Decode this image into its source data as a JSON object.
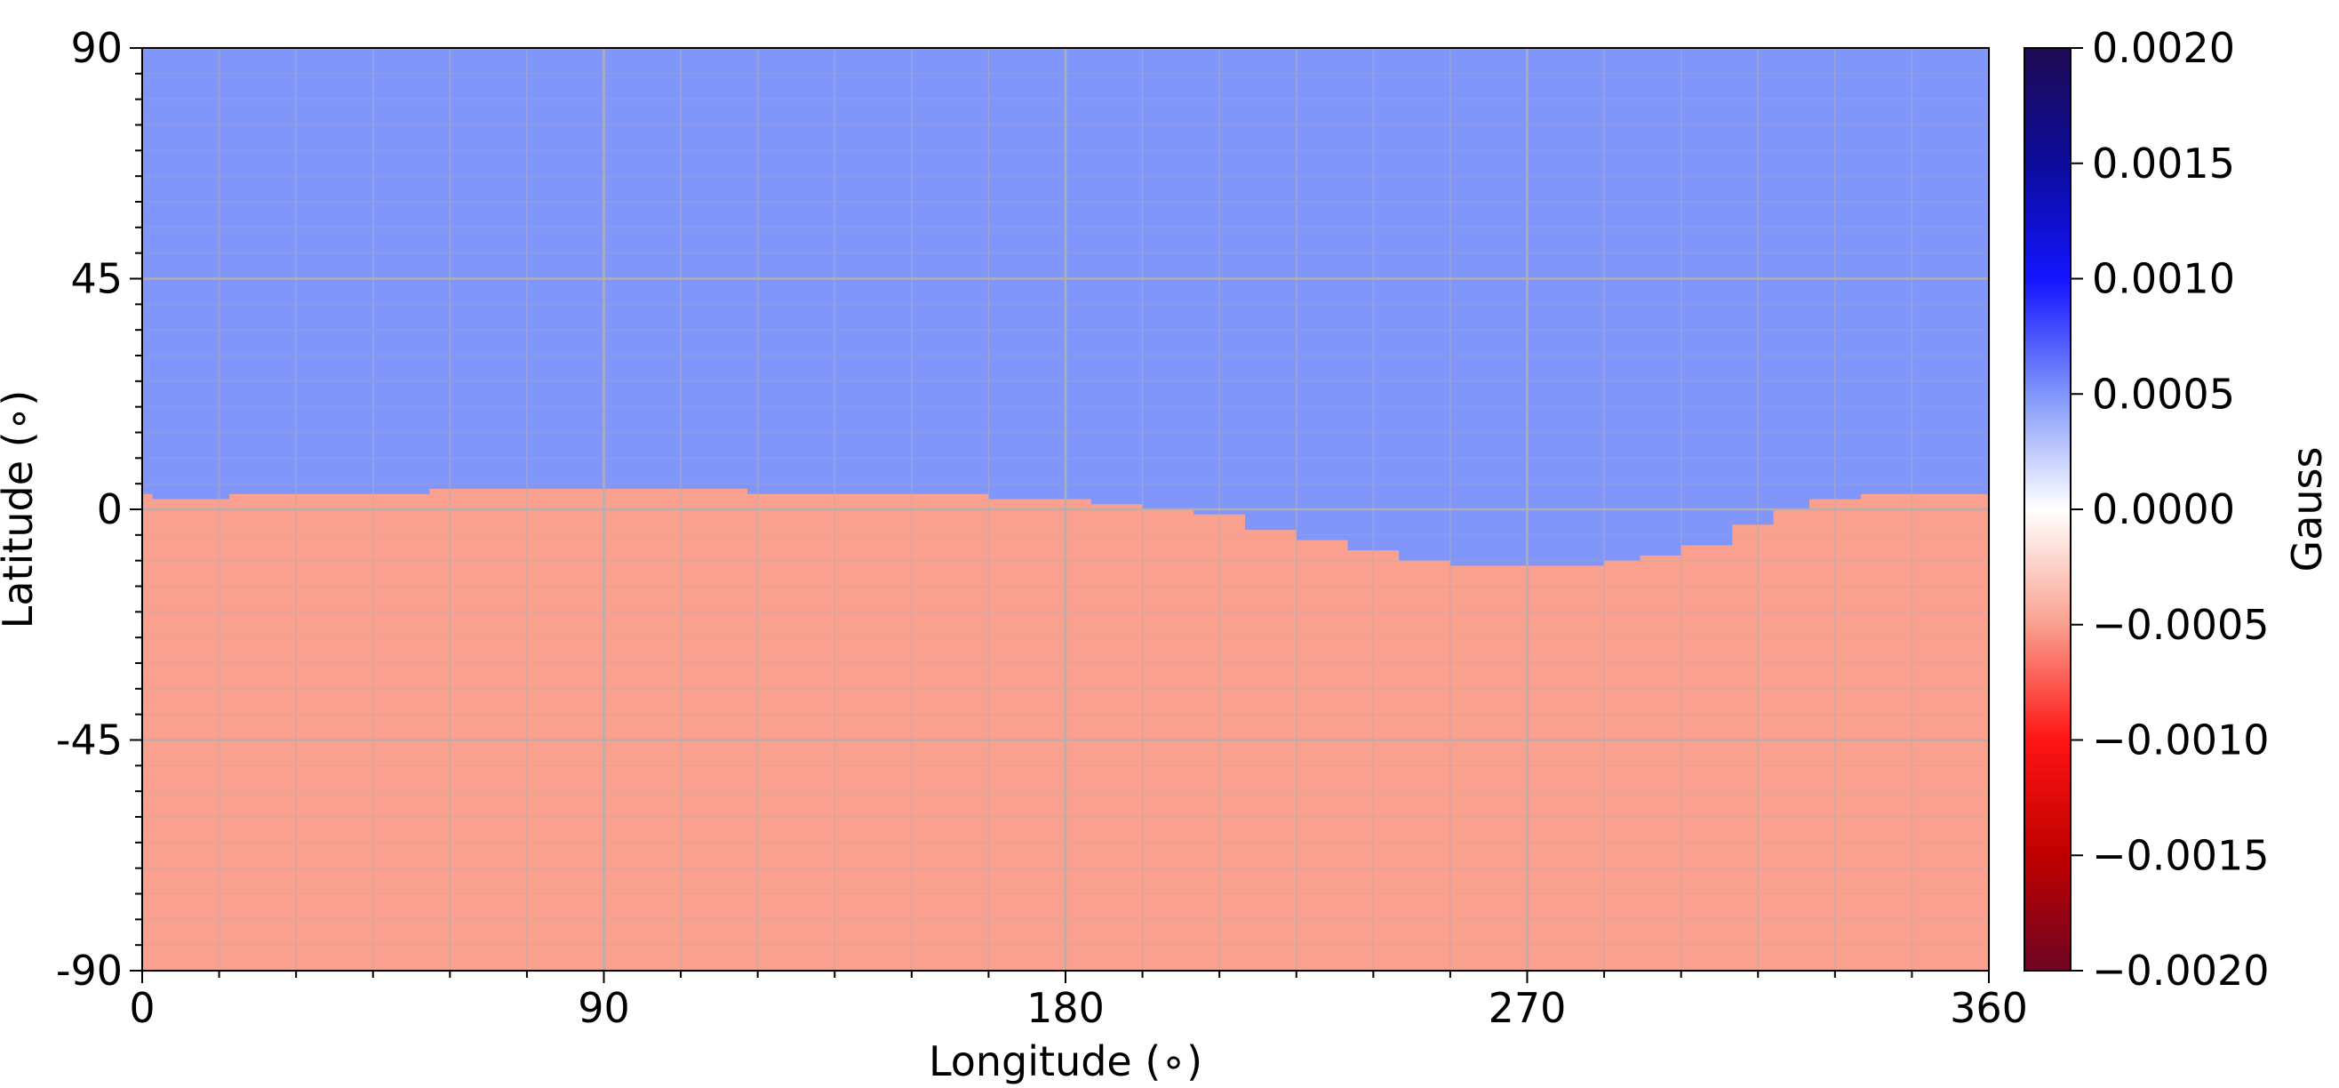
{
  "chart_data": {
    "type": "heatmap",
    "xlabel": "Longitude ($^\\circ$)",
    "ylabel": "Latitude ($^\\circ$)",
    "xlabel_text": "Longitude (∘)",
    "ylabel_text": "Latitude (∘)",
    "xlim": [
      0,
      360
    ],
    "ylim": [
      -90,
      90
    ],
    "x_ticks": [
      0,
      90,
      180,
      270,
      360
    ],
    "x_tick_labels": [
      "0",
      "90",
      "180",
      "270",
      "360"
    ],
    "y_ticks": [
      90,
      45,
      0,
      -45,
      -90
    ],
    "y_tick_labels": [
      "90",
      "45",
      "0",
      "-45",
      "-90"
    ],
    "grid": true,
    "colorbar": {
      "label": "Gauss",
      "colormap": "seismic_r",
      "range": [
        -0.002,
        0.002
      ],
      "ticks": [
        0.002,
        0.0015,
        0.001,
        0.0005,
        0.0,
        -0.0005,
        -0.001,
        -0.0015,
        -0.002
      ],
      "tick_labels": [
        "0.0020",
        "0.0015",
        "0.0010",
        "0.0005",
        "0.0000",
        "−0.0005",
        "−0.0010",
        "−0.0015",
        "−0.0020"
      ]
    },
    "regions": [
      {
        "name": "north",
        "value": 0.0005,
        "color": "#8096fa"
      },
      {
        "name": "south",
        "value": -0.0005,
        "color": "#f9a08e"
      }
    ],
    "boundary": {
      "longitude": [
        0,
        2,
        17,
        34,
        56,
        90,
        118,
        165,
        185,
        195,
        205,
        215,
        225,
        235,
        245,
        255,
        262,
        270,
        278,
        285,
        292,
        300,
        310,
        318,
        325,
        335,
        360
      ],
      "latitude": [
        3,
        2,
        3,
        3,
        4,
        4,
        3,
        2,
        1,
        0,
        -1,
        -4,
        -6,
        -8,
        -10,
        -11,
        -11,
        -11,
        -11,
        -10,
        -9,
        -7,
        -3,
        0,
        2,
        3,
        3
      ]
    }
  }
}
